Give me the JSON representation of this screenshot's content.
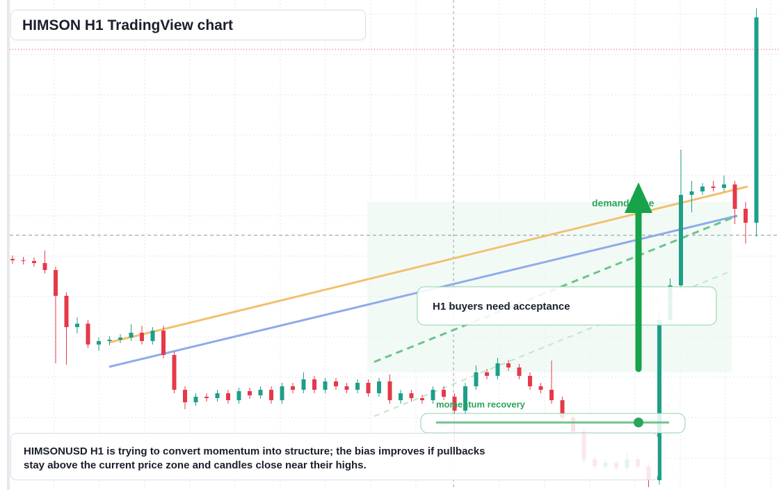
{
  "chart_data": {
    "type": "candlestick",
    "title": "HIMSON H1 TradingView chart",
    "annotations": [
      "demand zone",
      "H1 buyers need acceptance",
      "momentum recovery"
    ],
    "caption": "HIMSONUSD H1 is trying to convert momentum into structure; the bias improves if pullbacks stay above the current price zone and candles close near their highs.",
    "up_color": "#1f9e88",
    "down_color": "#e5394a",
    "ylim": [
      0,
      704
    ],
    "ohlc": [
      [
        332,
        337,
        325,
        330
      ],
      [
        330,
        335,
        324,
        329
      ],
      [
        329,
        334,
        321,
        326
      ],
      [
        326,
        344,
        311,
        316
      ],
      [
        316,
        321,
        182,
        279
      ],
      [
        279,
        284,
        180,
        234
      ],
      [
        234,
        248,
        225,
        239
      ],
      [
        239,
        244,
        204,
        209
      ],
      [
        209,
        219,
        200,
        214
      ],
      [
        214,
        221,
        208,
        216
      ],
      [
        216,
        224,
        211,
        219
      ],
      [
        219,
        238,
        214,
        226
      ],
      [
        226,
        236,
        209,
        214
      ],
      [
        214,
        234,
        209,
        229
      ],
      [
        229,
        236,
        189,
        194
      ],
      [
        194,
        199,
        139,
        144
      ],
      [
        144,
        149,
        116,
        126
      ],
      [
        126,
        139,
        121,
        134
      ],
      [
        134,
        139,
        127,
        132
      ],
      [
        132,
        144,
        127,
        139
      ],
      [
        139,
        144,
        124,
        129
      ],
      [
        129,
        147,
        124,
        142
      ],
      [
        142,
        147,
        131,
        136
      ],
      [
        136,
        149,
        131,
        144
      ],
      [
        144,
        149,
        124,
        129
      ],
      [
        129,
        154,
        124,
        149
      ],
      [
        149,
        154,
        139,
        144
      ],
      [
        144,
        169,
        139,
        159
      ],
      [
        159,
        164,
        139,
        144
      ],
      [
        144,
        161,
        139,
        156
      ],
      [
        156,
        161,
        144,
        149
      ],
      [
        149,
        154,
        139,
        144
      ],
      [
        144,
        159,
        139,
        154
      ],
      [
        154,
        159,
        134,
        139
      ],
      [
        139,
        161,
        134,
        156
      ],
      [
        156,
        166,
        124,
        129
      ],
      [
        129,
        144,
        124,
        139
      ],
      [
        139,
        144,
        127,
        132
      ],
      [
        132,
        137,
        124,
        129
      ],
      [
        129,
        149,
        124,
        144
      ],
      [
        144,
        149,
        129,
        134
      ],
      [
        134,
        139,
        64,
        114
      ],
      [
        114,
        154,
        109,
        149
      ],
      [
        149,
        179,
        144,
        169
      ],
      [
        169,
        174,
        159,
        164
      ],
      [
        164,
        190,
        159,
        182
      ],
      [
        182,
        187,
        171,
        176
      ],
      [
        176,
        181,
        159,
        164
      ],
      [
        164,
        169,
        144,
        149
      ],
      [
        149,
        154,
        139,
        144
      ],
      [
        144,
        186,
        124,
        129
      ],
      [
        129,
        134,
        99,
        104
      ],
      [
        104,
        109,
        79,
        84
      ],
      [
        84,
        89,
        39,
        44
      ],
      [
        44,
        49,
        29,
        34
      ],
      [
        34,
        44,
        29,
        39
      ],
      [
        39,
        44,
        27,
        32
      ],
      [
        32,
        54,
        27,
        44
      ],
      [
        44,
        49,
        29,
        34
      ],
      [
        34,
        39,
        4,
        14
      ],
      [
        14,
        254,
        8,
        244
      ],
      [
        244,
        304,
        239,
        294
      ],
      [
        294,
        489,
        289,
        424
      ],
      [
        424,
        444,
        399,
        429
      ],
      [
        429,
        441,
        424,
        436
      ],
      [
        436,
        444,
        429,
        434
      ],
      [
        434,
        452,
        429,
        439
      ],
      [
        439,
        444,
        382,
        404
      ],
      [
        404,
        414,
        354,
        384
      ],
      [
        384,
        692,
        364,
        679
      ]
    ]
  }
}
